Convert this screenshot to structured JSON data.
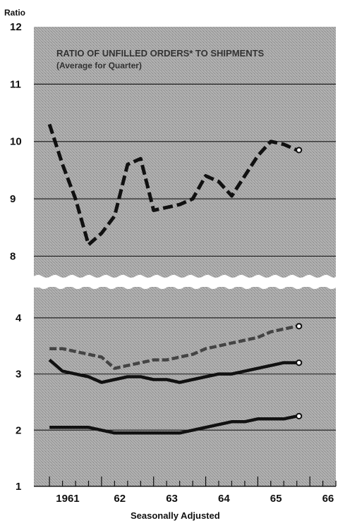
{
  "chart_data": {
    "type": "line",
    "title": "RATIO OF UNFILLED ORDERS* TO SHIPMENTS",
    "subtitle": "(Average for Quarter)",
    "ylabel": "Ratio",
    "xlabel": "Seasonally Adjusted",
    "x_tick_labels": [
      "1961",
      "62",
      "63",
      "64",
      "65",
      "66"
    ],
    "y_tick_labels_upper": [
      "12",
      "11",
      "10",
      "9",
      "8"
    ],
    "y_tick_labels_lower": [
      "4",
      "3",
      "2",
      "1"
    ],
    "ylim_upper": [
      7.6,
      12
    ],
    "ylim_lower": [
      1,
      4.55
    ],
    "grid": true,
    "colors": {
      "panel": "#a9a9a9",
      "line": "#111111",
      "dashed_gray": "#444444",
      "grid": "#222222"
    },
    "series": [
      {
        "panel": "upper",
        "style": "dashed-thick",
        "x": [
          1961.0,
          1961.25,
          1961.5,
          1961.75,
          1962.0,
          1962.25,
          1962.5,
          1962.75,
          1963.0,
          1963.25,
          1963.5,
          1963.75,
          1964.0,
          1964.25,
          1964.5,
          1964.75,
          1965.0,
          1965.25,
          1965.5,
          1965.75
        ],
        "values": [
          10.3,
          9.6,
          9.0,
          8.2,
          8.4,
          8.7,
          9.6,
          9.7,
          8.8,
          8.85,
          8.9,
          9.0,
          9.4,
          9.3,
          9.05,
          9.4,
          9.75,
          10.0,
          9.95,
          9.85
        ]
      },
      {
        "panel": "lower",
        "style": "dashed-gray",
        "x": [
          1961.0,
          1961.25,
          1961.5,
          1961.75,
          1962.0,
          1962.25,
          1962.5,
          1962.75,
          1963.0,
          1963.25,
          1963.5,
          1963.75,
          1964.0,
          1964.25,
          1964.5,
          1964.75,
          1965.0,
          1965.25,
          1965.5,
          1965.75
        ],
        "values": [
          3.45,
          3.45,
          3.4,
          3.35,
          3.3,
          3.1,
          3.15,
          3.2,
          3.25,
          3.25,
          3.3,
          3.35,
          3.45,
          3.5,
          3.55,
          3.6,
          3.65,
          3.75,
          3.8,
          3.85
        ]
      },
      {
        "panel": "lower",
        "style": "solid-thick",
        "x": [
          1961.0,
          1961.25,
          1961.5,
          1961.75,
          1962.0,
          1962.25,
          1962.5,
          1962.75,
          1963.0,
          1963.25,
          1963.5,
          1963.75,
          1964.0,
          1964.25,
          1964.5,
          1964.75,
          1965.0,
          1965.25,
          1965.5,
          1965.75
        ],
        "values": [
          3.25,
          3.05,
          3.0,
          2.95,
          2.85,
          2.9,
          2.95,
          2.95,
          2.9,
          2.9,
          2.85,
          2.9,
          2.95,
          3.0,
          3.0,
          3.05,
          3.1,
          3.15,
          3.2,
          3.2
        ]
      },
      {
        "panel": "lower",
        "style": "solid-thick",
        "x": [
          1961.0,
          1961.25,
          1961.5,
          1961.75,
          1962.0,
          1962.25,
          1962.5,
          1962.75,
          1963.0,
          1963.25,
          1963.5,
          1963.75,
          1964.0,
          1964.25,
          1964.5,
          1964.75,
          1965.0,
          1965.25,
          1965.5,
          1965.75
        ],
        "values": [
          2.05,
          2.05,
          2.05,
          2.05,
          2.0,
          1.95,
          1.95,
          1.95,
          1.95,
          1.95,
          1.95,
          2.0,
          2.05,
          2.1,
          2.15,
          2.15,
          2.2,
          2.2,
          2.2,
          2.25
        ]
      }
    ]
  }
}
